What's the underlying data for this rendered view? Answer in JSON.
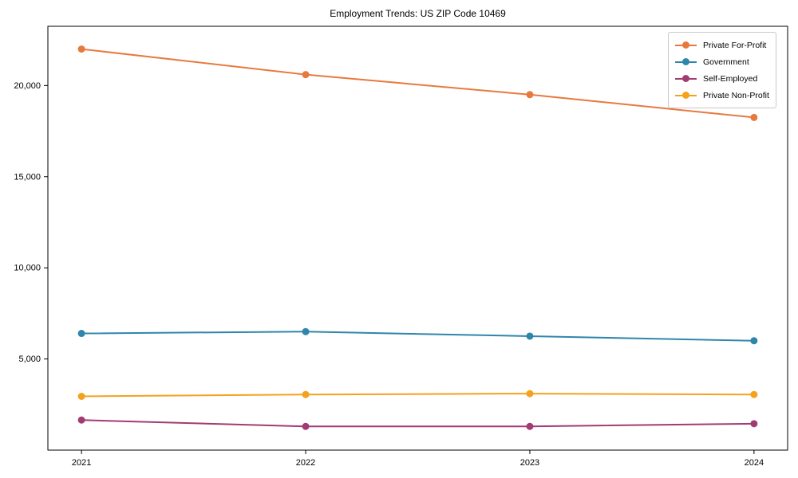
{
  "chart_data": {
    "type": "line",
    "title": "Employment Trends: US ZIP Code 10469",
    "x": [
      2021,
      2022,
      2023,
      2024
    ],
    "xtick_labels": [
      "2021",
      "2022",
      "2023",
      "2024"
    ],
    "series": [
      {
        "name": "Private For-Profit",
        "color": "#e8793e",
        "values": [
          22000,
          20600,
          19500,
          18250
        ]
      },
      {
        "name": "Government",
        "color": "#2e86ab",
        "values": [
          6400,
          6500,
          6250,
          6000
        ]
      },
      {
        "name": "Self-Employed",
        "color": "#a23b72",
        "values": [
          1650,
          1300,
          1300,
          1450
        ]
      },
      {
        "name": "Private Non-Profit",
        "color": "#f5a11d",
        "values": [
          2950,
          3050,
          3100,
          3050
        ]
      }
    ],
    "xlim": [
      2020.85,
      2024.15
    ],
    "ylim": [
      0,
      23250
    ],
    "yticks": [
      5000,
      10000,
      15000,
      20000
    ],
    "ytick_labels": [
      "5,000",
      "10,000",
      "15,000",
      "20,000"
    ],
    "legend_position": "upper right",
    "grid": false,
    "marker": "circle"
  }
}
